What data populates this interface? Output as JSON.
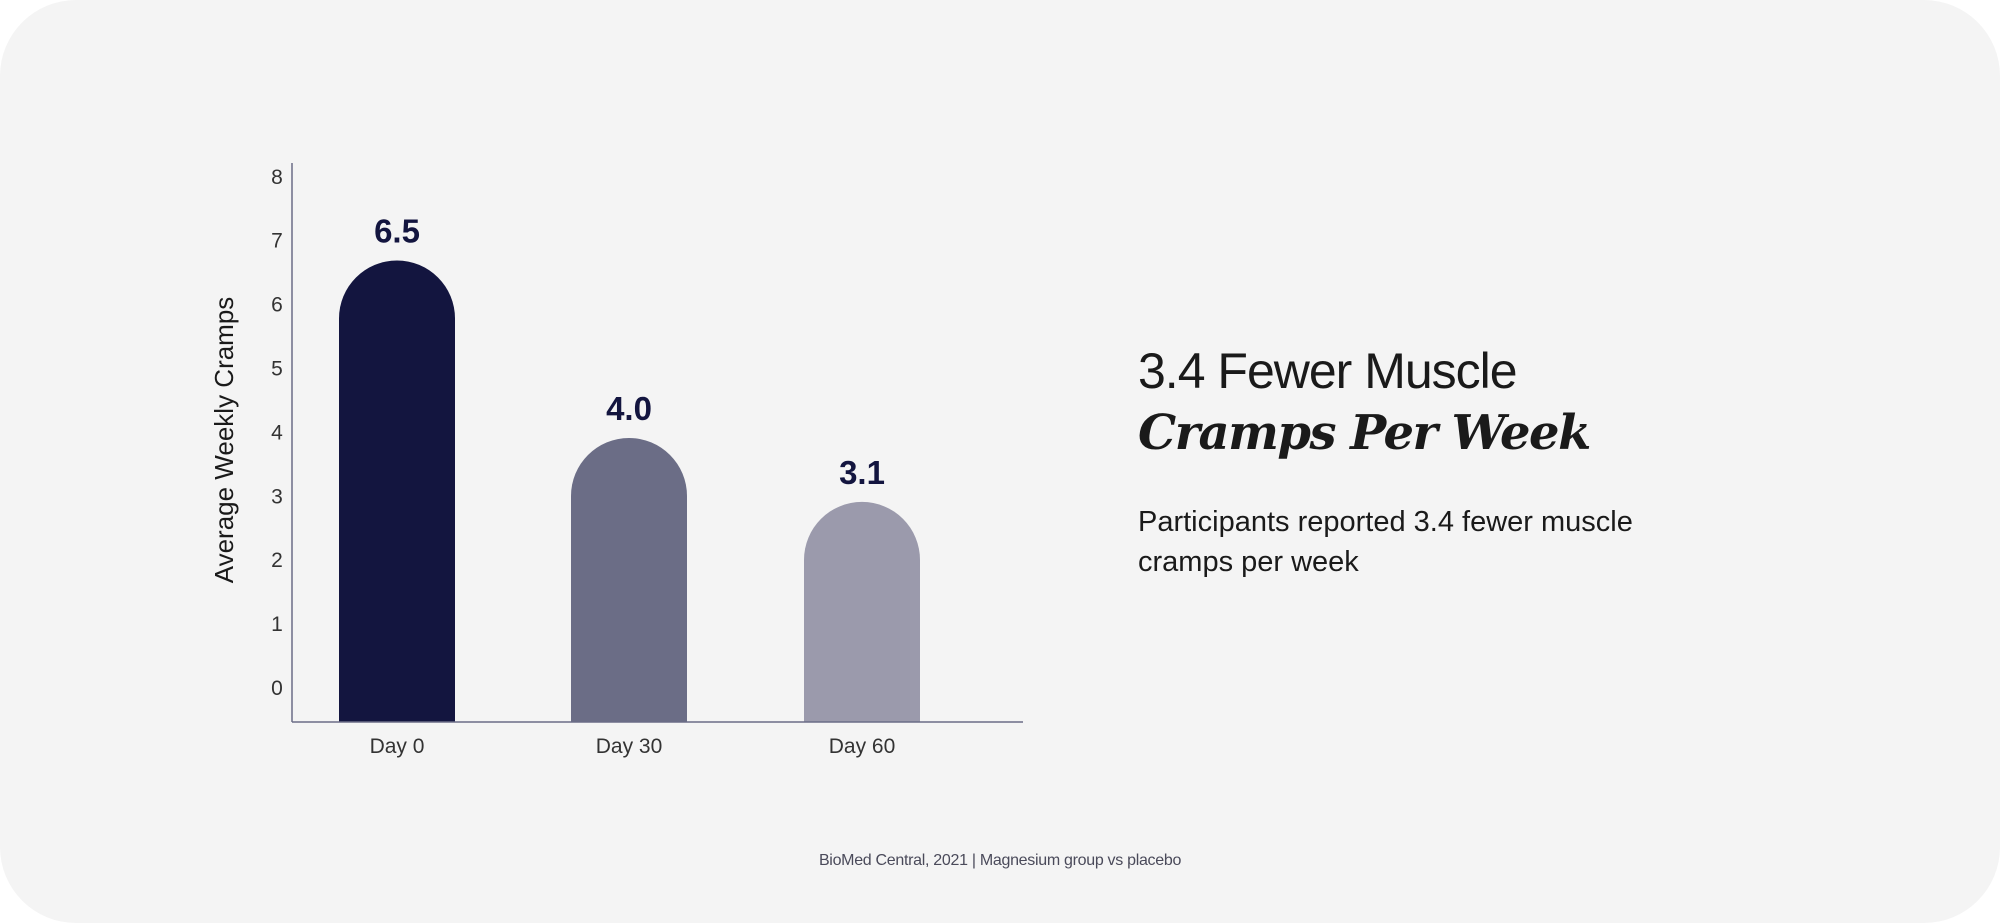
{
  "chart_data": {
    "type": "bar",
    "categories": [
      "Day 0",
      "Day 30",
      "Day 60"
    ],
    "values": [
      6.5,
      4.0,
      3.1
    ],
    "value_labels": [
      "6.5",
      "4.0",
      "3.1"
    ],
    "ylabel": "Average Weekly Cramps",
    "xlabel": "",
    "ylim": [
      0,
      8
    ],
    "yticks": [
      0,
      1,
      2,
      3,
      4,
      5,
      6,
      7,
      8
    ],
    "grid": false,
    "colors": [
      "#13153f",
      "#6b6d86",
      "#9b9aac"
    ],
    "axis_color": "#6b6d86",
    "label_color": "#13153f"
  },
  "headline": {
    "line1": "3.4 Fewer Muscle",
    "line2": "Cramps Per Week"
  },
  "description": "Participants reported 3.4 fewer muscle cramps per week",
  "footer": "BioMed Central, 2021 | Magnesium group vs placebo"
}
